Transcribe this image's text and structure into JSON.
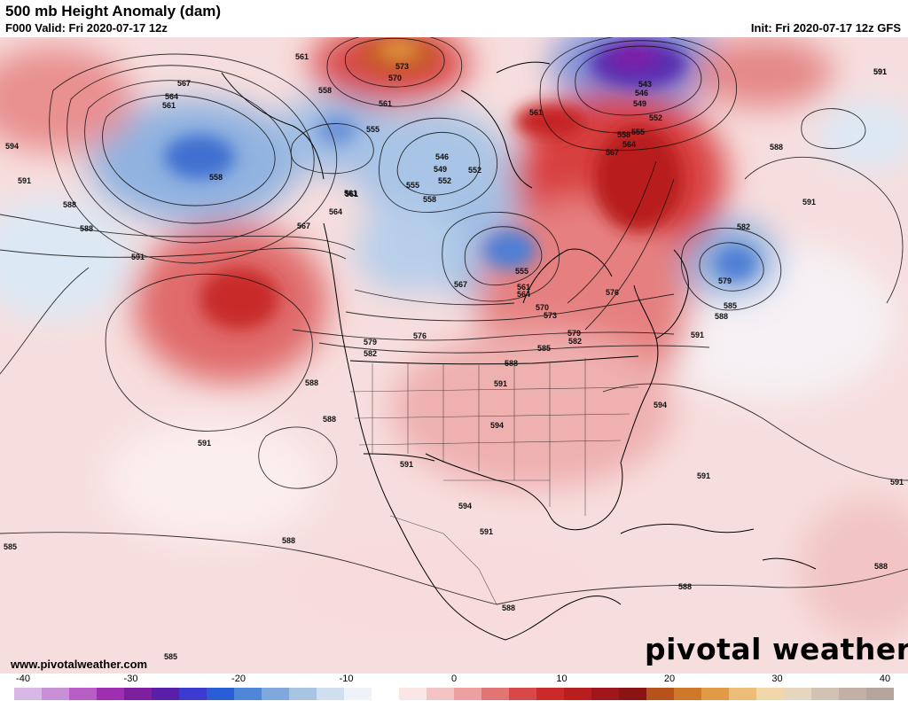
{
  "header": {
    "title": "500 mb Height Anomaly (dam)",
    "valid": "F000 Valid: Fri 2020-07-17 12z",
    "init": "Init: Fri 2020-07-17 12z GFS"
  },
  "footer": {
    "website": "www.pivotalweather.com",
    "logo_text": "pivotal weather"
  },
  "colorbar": {
    "ticks": [
      "-40",
      "-30",
      "-20",
      "-10",
      "0",
      "10",
      "20",
      "30",
      "40"
    ],
    "colors": [
      "#d9b8e8",
      "#c98fd6",
      "#b75ec4",
      "#9e2fb0",
      "#7d20a0",
      "#5a1fa8",
      "#3b3bd0",
      "#2a5ed8",
      "#4f86d8",
      "#7fa8dc",
      "#a8c4e4",
      "#cfdff0",
      "#eef3fa",
      "#ffffff",
      "#fbe6e6",
      "#f4c4c4",
      "#eca0a0",
      "#e27474",
      "#d84848",
      "#cc2a2a",
      "#b81e1e",
      "#a0161a",
      "#8a1414",
      "#b8521c",
      "#d0782a",
      "#e09a48",
      "#ebbd78",
      "#f2d8a8",
      "#e6d6c0",
      "#d2c2b4",
      "#c2b0a6",
      "#b4a49c"
    ]
  },
  "contour_labels": [
    "561",
    "573",
    "570",
    "561",
    "567",
    "564",
    "561",
    "594",
    "591",
    "588",
    "588",
    "558",
    "555",
    "558",
    "552",
    "546",
    "549",
    "555",
    "552",
    "558",
    "561",
    "564",
    "567",
    "543",
    "546",
    "549",
    "552",
    "555",
    "558",
    "564",
    "567",
    "561",
    "591",
    "588",
    "591",
    "582",
    "579",
    "585",
    "588",
    "591",
    "591",
    "588",
    "591",
    "555",
    "561",
    "564",
    "567",
    "570",
    "573",
    "576",
    "579",
    "582",
    "576",
    "579",
    "582",
    "585",
    "588",
    "591",
    "588",
    "588",
    "591",
    "591",
    "594",
    "594",
    "594",
    "591",
    "591",
    "588",
    "588",
    "588",
    "585",
    "585",
    "561",
    "591"
  ]
}
